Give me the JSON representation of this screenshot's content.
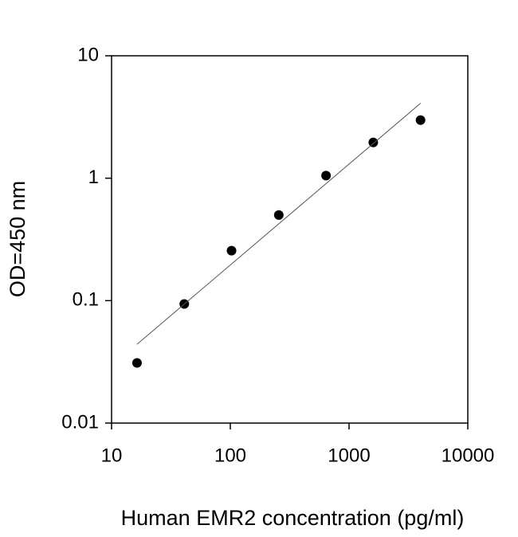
{
  "chart_data": {
    "type": "scatter",
    "xlabel": "Human EMR2 concentration (pg/ml)",
    "ylabel": "OD=450 nm",
    "xscale": "log",
    "yscale": "log",
    "xlim": [
      10,
      10000
    ],
    "ylim": [
      0.01,
      10
    ],
    "xticks": [
      10,
      100,
      1000,
      10000
    ],
    "yticks": [
      0.01,
      0.1,
      1,
      10
    ],
    "series": [
      {
        "kind": "points",
        "color": "#000000",
        "x": [
          16.38,
          40.96,
          102.4,
          256,
          640,
          1600,
          4000
        ],
        "values": [
          0.031,
          0.094,
          0.256,
          0.5,
          1.05,
          1.96,
          2.98
        ]
      },
      {
        "kind": "line",
        "color": "#555555",
        "x": [
          16.38,
          4000
        ],
        "values": [
          0.044,
          4.09
        ]
      }
    ]
  }
}
